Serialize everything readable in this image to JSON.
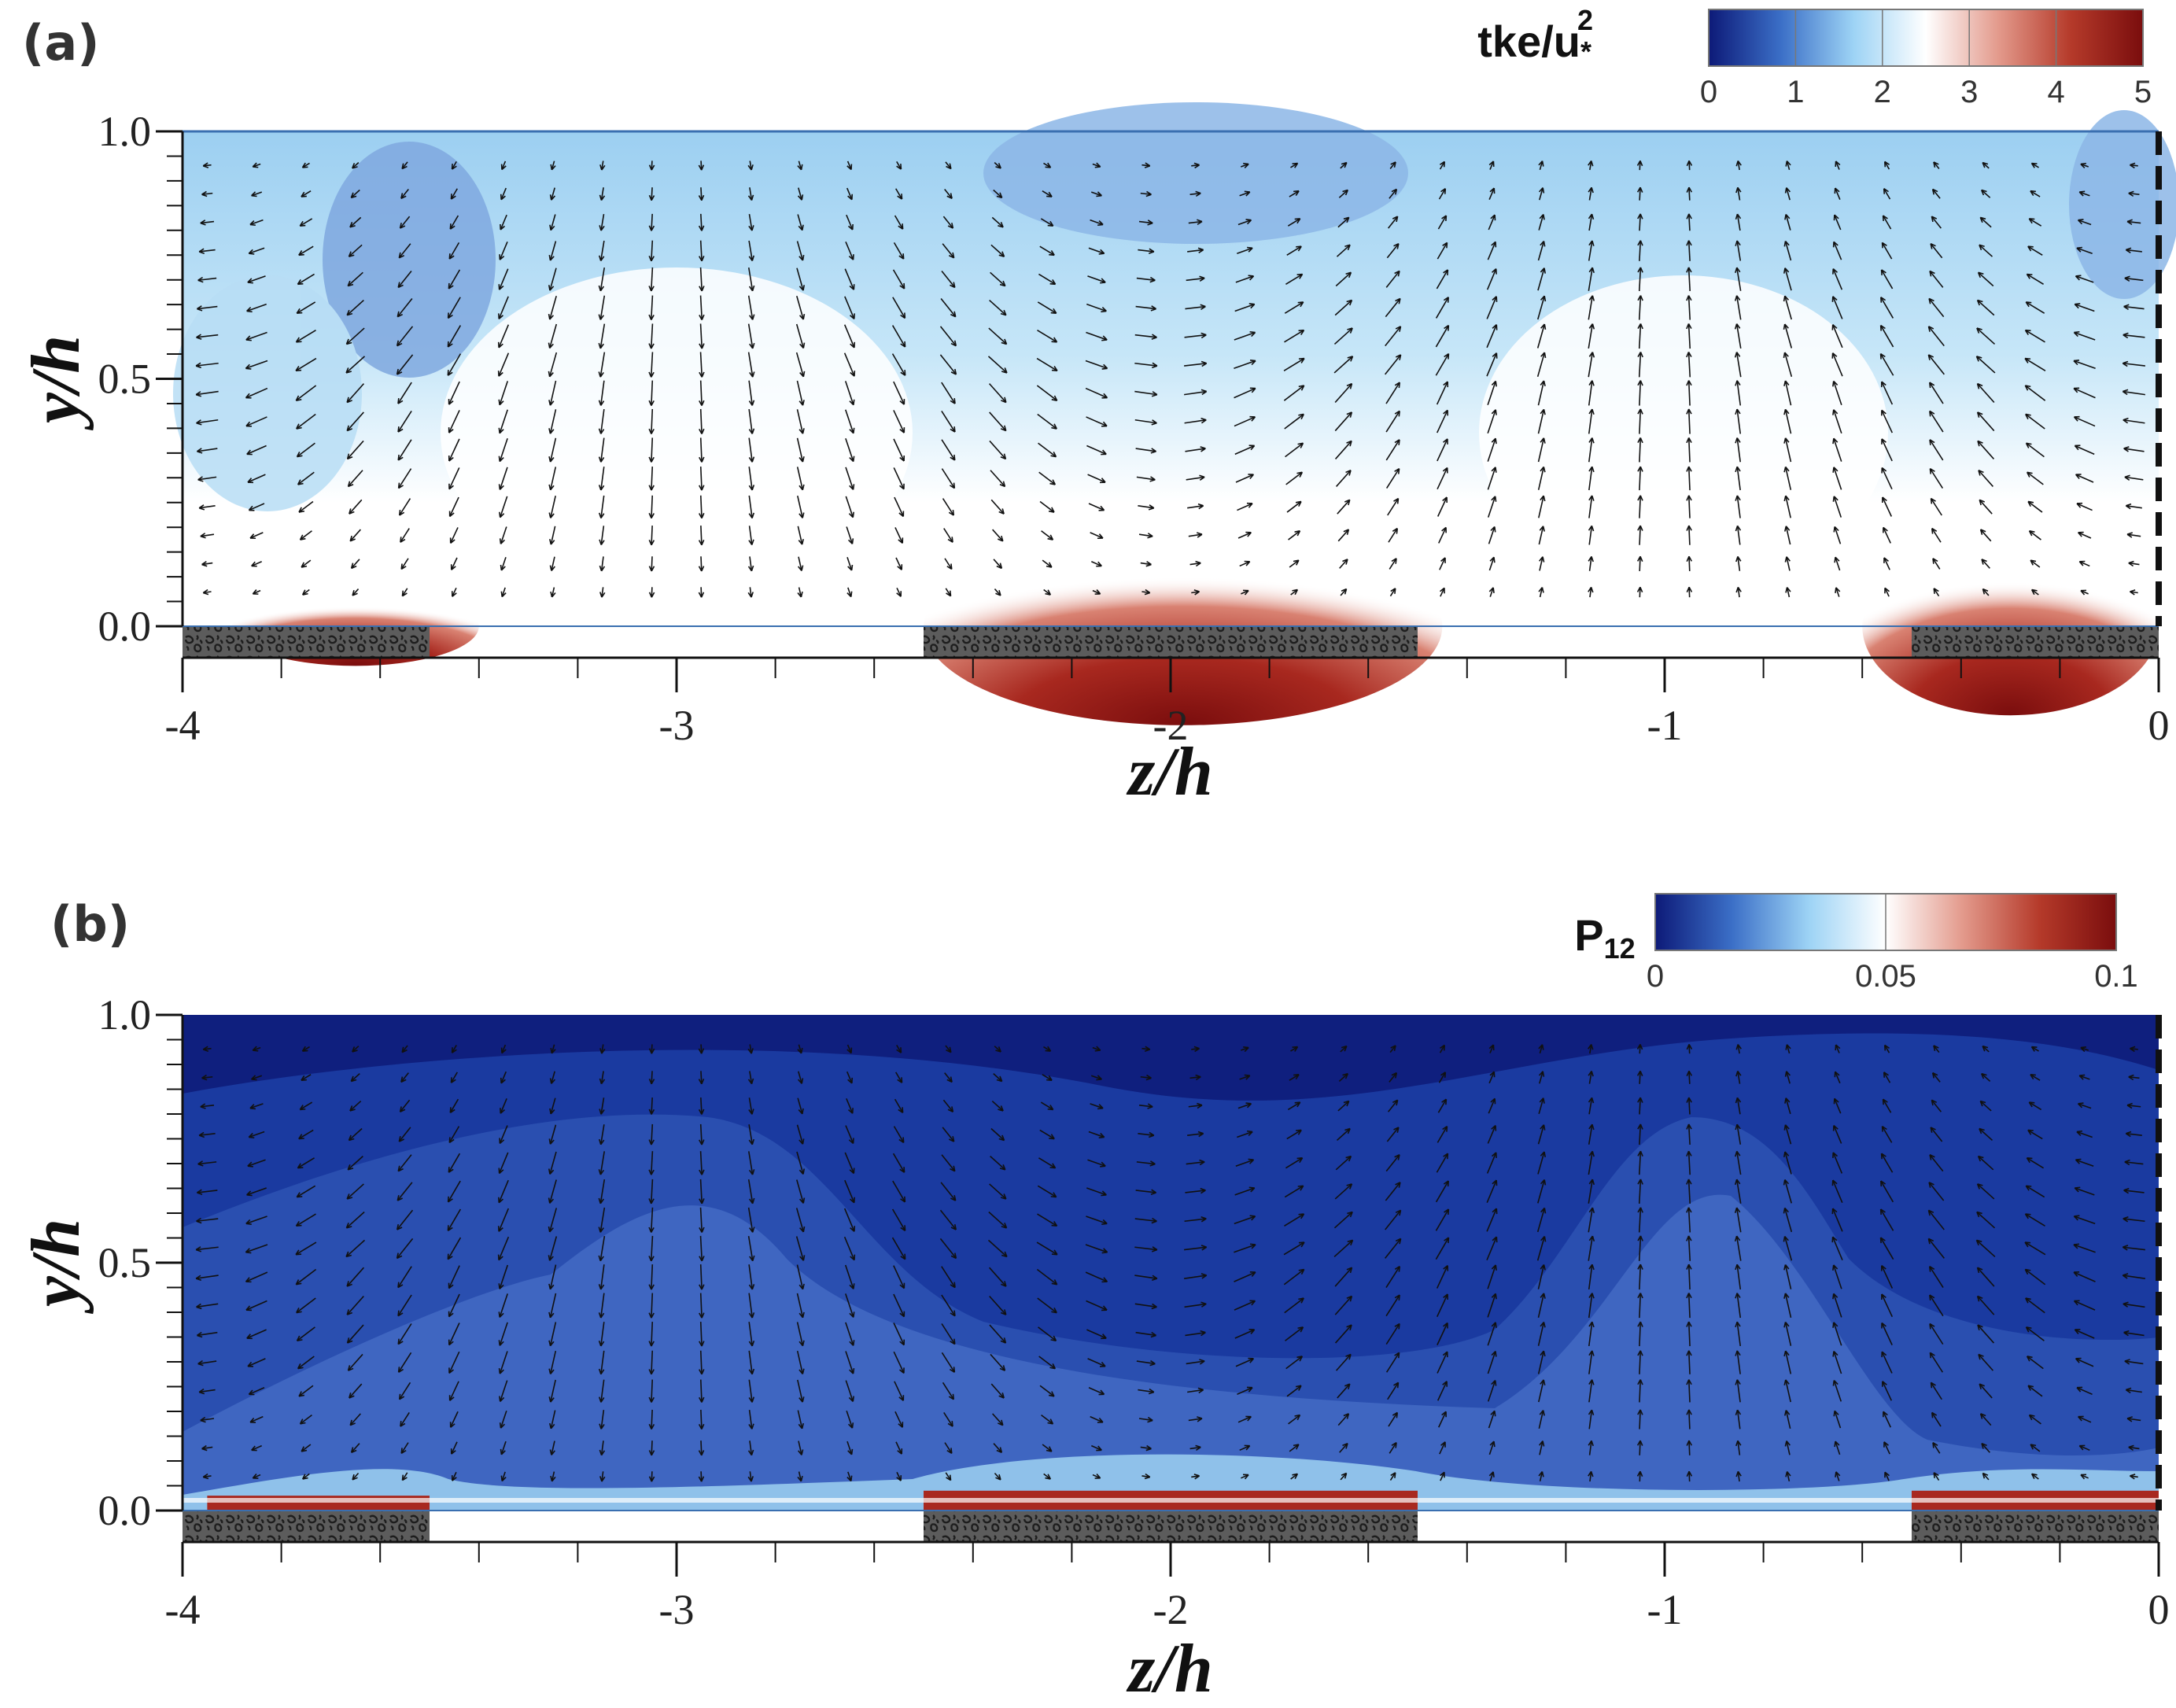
{
  "chart_data": [
    {
      "type": "heatmap",
      "panel_label": "(a)",
      "xlabel": "z/h",
      "ylabel": "y/h",
      "xlim": [
        -4,
        0
      ],
      "ylim": [
        0,
        1
      ],
      "x_ticks": [
        "-4",
        "-3",
        "-2",
        "-1",
        "0"
      ],
      "y_ticks": [
        "0.0",
        "0.5",
        "1.0"
      ],
      "colorbar": {
        "title": "tke/u",
        "title_sub": "*",
        "title_sup": "2",
        "range": [
          0,
          5
        ],
        "ticks": [
          "0",
          "1",
          "2",
          "3",
          "4",
          "5"
        ],
        "colors": [
          "#0d1a78",
          "#3b6fc7",
          "#9dd3f5",
          "#ffffff",
          "#e39a8c",
          "#b53a2a",
          "#7a0d0d"
        ]
      },
      "rough_strips_z": [
        [
          -4,
          -3.5
        ],
        [
          -2.5,
          -1.5
        ],
        [
          -0.5,
          0
        ]
      ],
      "field": {
        "background_upper": "#a9d8f3",
        "background_lower": "#ffffff",
        "high_tke_regions": [
          {
            "z_range": [
              -3.9,
              -3.4
            ],
            "y_max": 0.08,
            "peak": 4.5
          },
          {
            "z_range": [
              -2.5,
              -1.45
            ],
            "y_max": 0.2,
            "peak": 5.0
          },
          {
            "z_range": [
              -0.6,
              0
            ],
            "y_max": 0.18,
            "peak": 4.8
          }
        ]
      }
    },
    {
      "type": "heatmap",
      "panel_label": "(b)",
      "xlabel": "z/h",
      "ylabel": "y/h",
      "xlim": [
        -4,
        0
      ],
      "ylim": [
        0,
        1
      ],
      "x_ticks": [
        "-4",
        "-3",
        "-2",
        "-1",
        "0"
      ],
      "y_ticks": [
        "0.0",
        "0.5",
        "1.0"
      ],
      "colorbar": {
        "title": "P",
        "title_sub": "12",
        "range": [
          0,
          0.1
        ],
        "ticks": [
          "0",
          "0.05",
          "0.1"
        ],
        "colors": [
          "#0d1a78",
          "#3b6fc7",
          "#9dd3f5",
          "#ffffff",
          "#e39a8c",
          "#b53a2a",
          "#7a0d0d"
        ]
      },
      "rough_strips_z": [
        [
          -4,
          -3.5
        ],
        [
          -2.5,
          -1.5
        ],
        [
          -0.5,
          0
        ]
      ],
      "field": {
        "background": "#1a3aa0",
        "levels": [
          "#0f1f7e",
          "#2a4fb0",
          "#5783cf",
          "#8fc1ea"
        ],
        "high_regions": [
          {
            "z_range": [
              -3.95,
              -3.5
            ],
            "y_max": 0.03
          },
          {
            "z_range": [
              -2.5,
              -1.5
            ],
            "y_max": 0.04
          },
          {
            "z_range": [
              -0.5,
              0
            ],
            "y_max": 0.04
          }
        ]
      }
    }
  ]
}
